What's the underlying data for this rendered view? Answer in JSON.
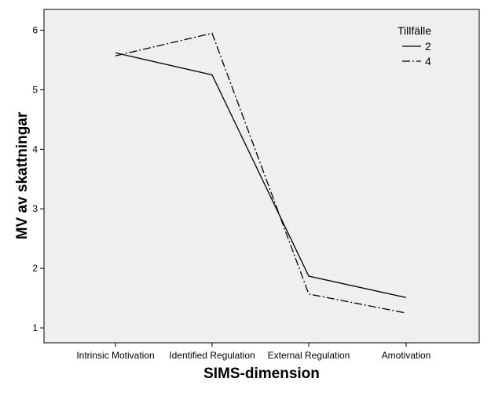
{
  "chart_data": {
    "type": "line",
    "categories": [
      "Intrinsic Motivation",
      "Identified Regulation",
      "External Regulation",
      "Amotivation"
    ],
    "series": [
      {
        "name": "2",
        "values": [
          5.62,
          5.25,
          1.87,
          1.51
        ],
        "dash": "solid"
      },
      {
        "name": "4",
        "values": [
          5.57,
          5.95,
          1.57,
          1.25
        ],
        "dash": "dashdot"
      }
    ],
    "title": "",
    "xlabel": "SIMS-dimension",
    "ylabel": "MV av skattningar",
    "ylim": [
      0.75,
      6.35
    ],
    "yticks": [
      "1",
      "2",
      "3",
      "4",
      "5",
      "6"
    ],
    "grid": false,
    "legend": {
      "title": "Tillfälle",
      "position": "top-right",
      "entries": [
        "2",
        "4"
      ]
    },
    "colors": {
      "background": "#efefef",
      "line": "#000000",
      "frame": "#000000"
    }
  }
}
